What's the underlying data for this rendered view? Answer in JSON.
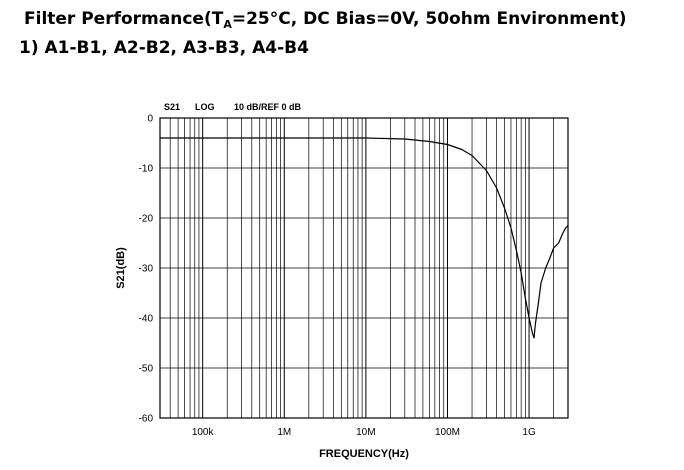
{
  "header": {
    "title_prefix": "Filter Performance(T",
    "title_subscript": "A",
    "title_suffix": "=25°C, DC Bias=0V, 50ohm Environment)",
    "subtitle": "1) A1-B1, A2-B2, A3-B3, A4-B4"
  },
  "chart_data": {
    "type": "line",
    "header_labels": [
      "S21",
      "LOG",
      "10 dB/REF 0 dB"
    ],
    "xlabel": "FREQUENCY(Hz)",
    "ylabel": "S21(dB)",
    "xscale": "log",
    "xlim": [
      30000,
      3000000000
    ],
    "ylim": [
      -60,
      0
    ],
    "x_ticks": [
      {
        "value": 100000,
        "label": "100k"
      },
      {
        "value": 1000000,
        "label": "1M"
      },
      {
        "value": 10000000,
        "label": "10M"
      },
      {
        "value": 100000000,
        "label": "100M"
      },
      {
        "value": 1000000000,
        "label": "1G"
      }
    ],
    "y_ticks": [
      {
        "value": 0,
        "label": "0"
      },
      {
        "value": -10,
        "label": "-10"
      },
      {
        "value": -20,
        "label": "-20"
      },
      {
        "value": -30,
        "label": "-30"
      },
      {
        "value": -40,
        "label": "-40"
      },
      {
        "value": -50,
        "label": "-50"
      },
      {
        "value": -60,
        "label": "-60"
      }
    ],
    "grid": true,
    "line_color": "#000000",
    "series": [
      {
        "x": [
          30000,
          100000,
          1000000,
          10000000,
          30000000,
          60000000,
          100000000,
          150000000,
          200000000,
          300000000,
          400000000,
          500000000,
          600000000,
          700000000,
          800000000,
          900000000,
          1000000000,
          1100000000,
          1150000000,
          1200000000,
          1300000000,
          1400000000,
          1600000000,
          1800000000,
          2000000000,
          2300000000,
          2600000000,
          2800000000,
          3000000000
        ],
        "y": [
          -4,
          -4,
          -4,
          -4,
          -4.2,
          -4.7,
          -5.3,
          -6.3,
          -7.5,
          -10.5,
          -14,
          -18,
          -22,
          -26.5,
          -31,
          -36,
          -40,
          -43,
          -44,
          -41,
          -37,
          -33,
          -30,
          -28,
          -26,
          -25,
          -23,
          -22,
          -21.5
        ]
      }
    ]
  }
}
